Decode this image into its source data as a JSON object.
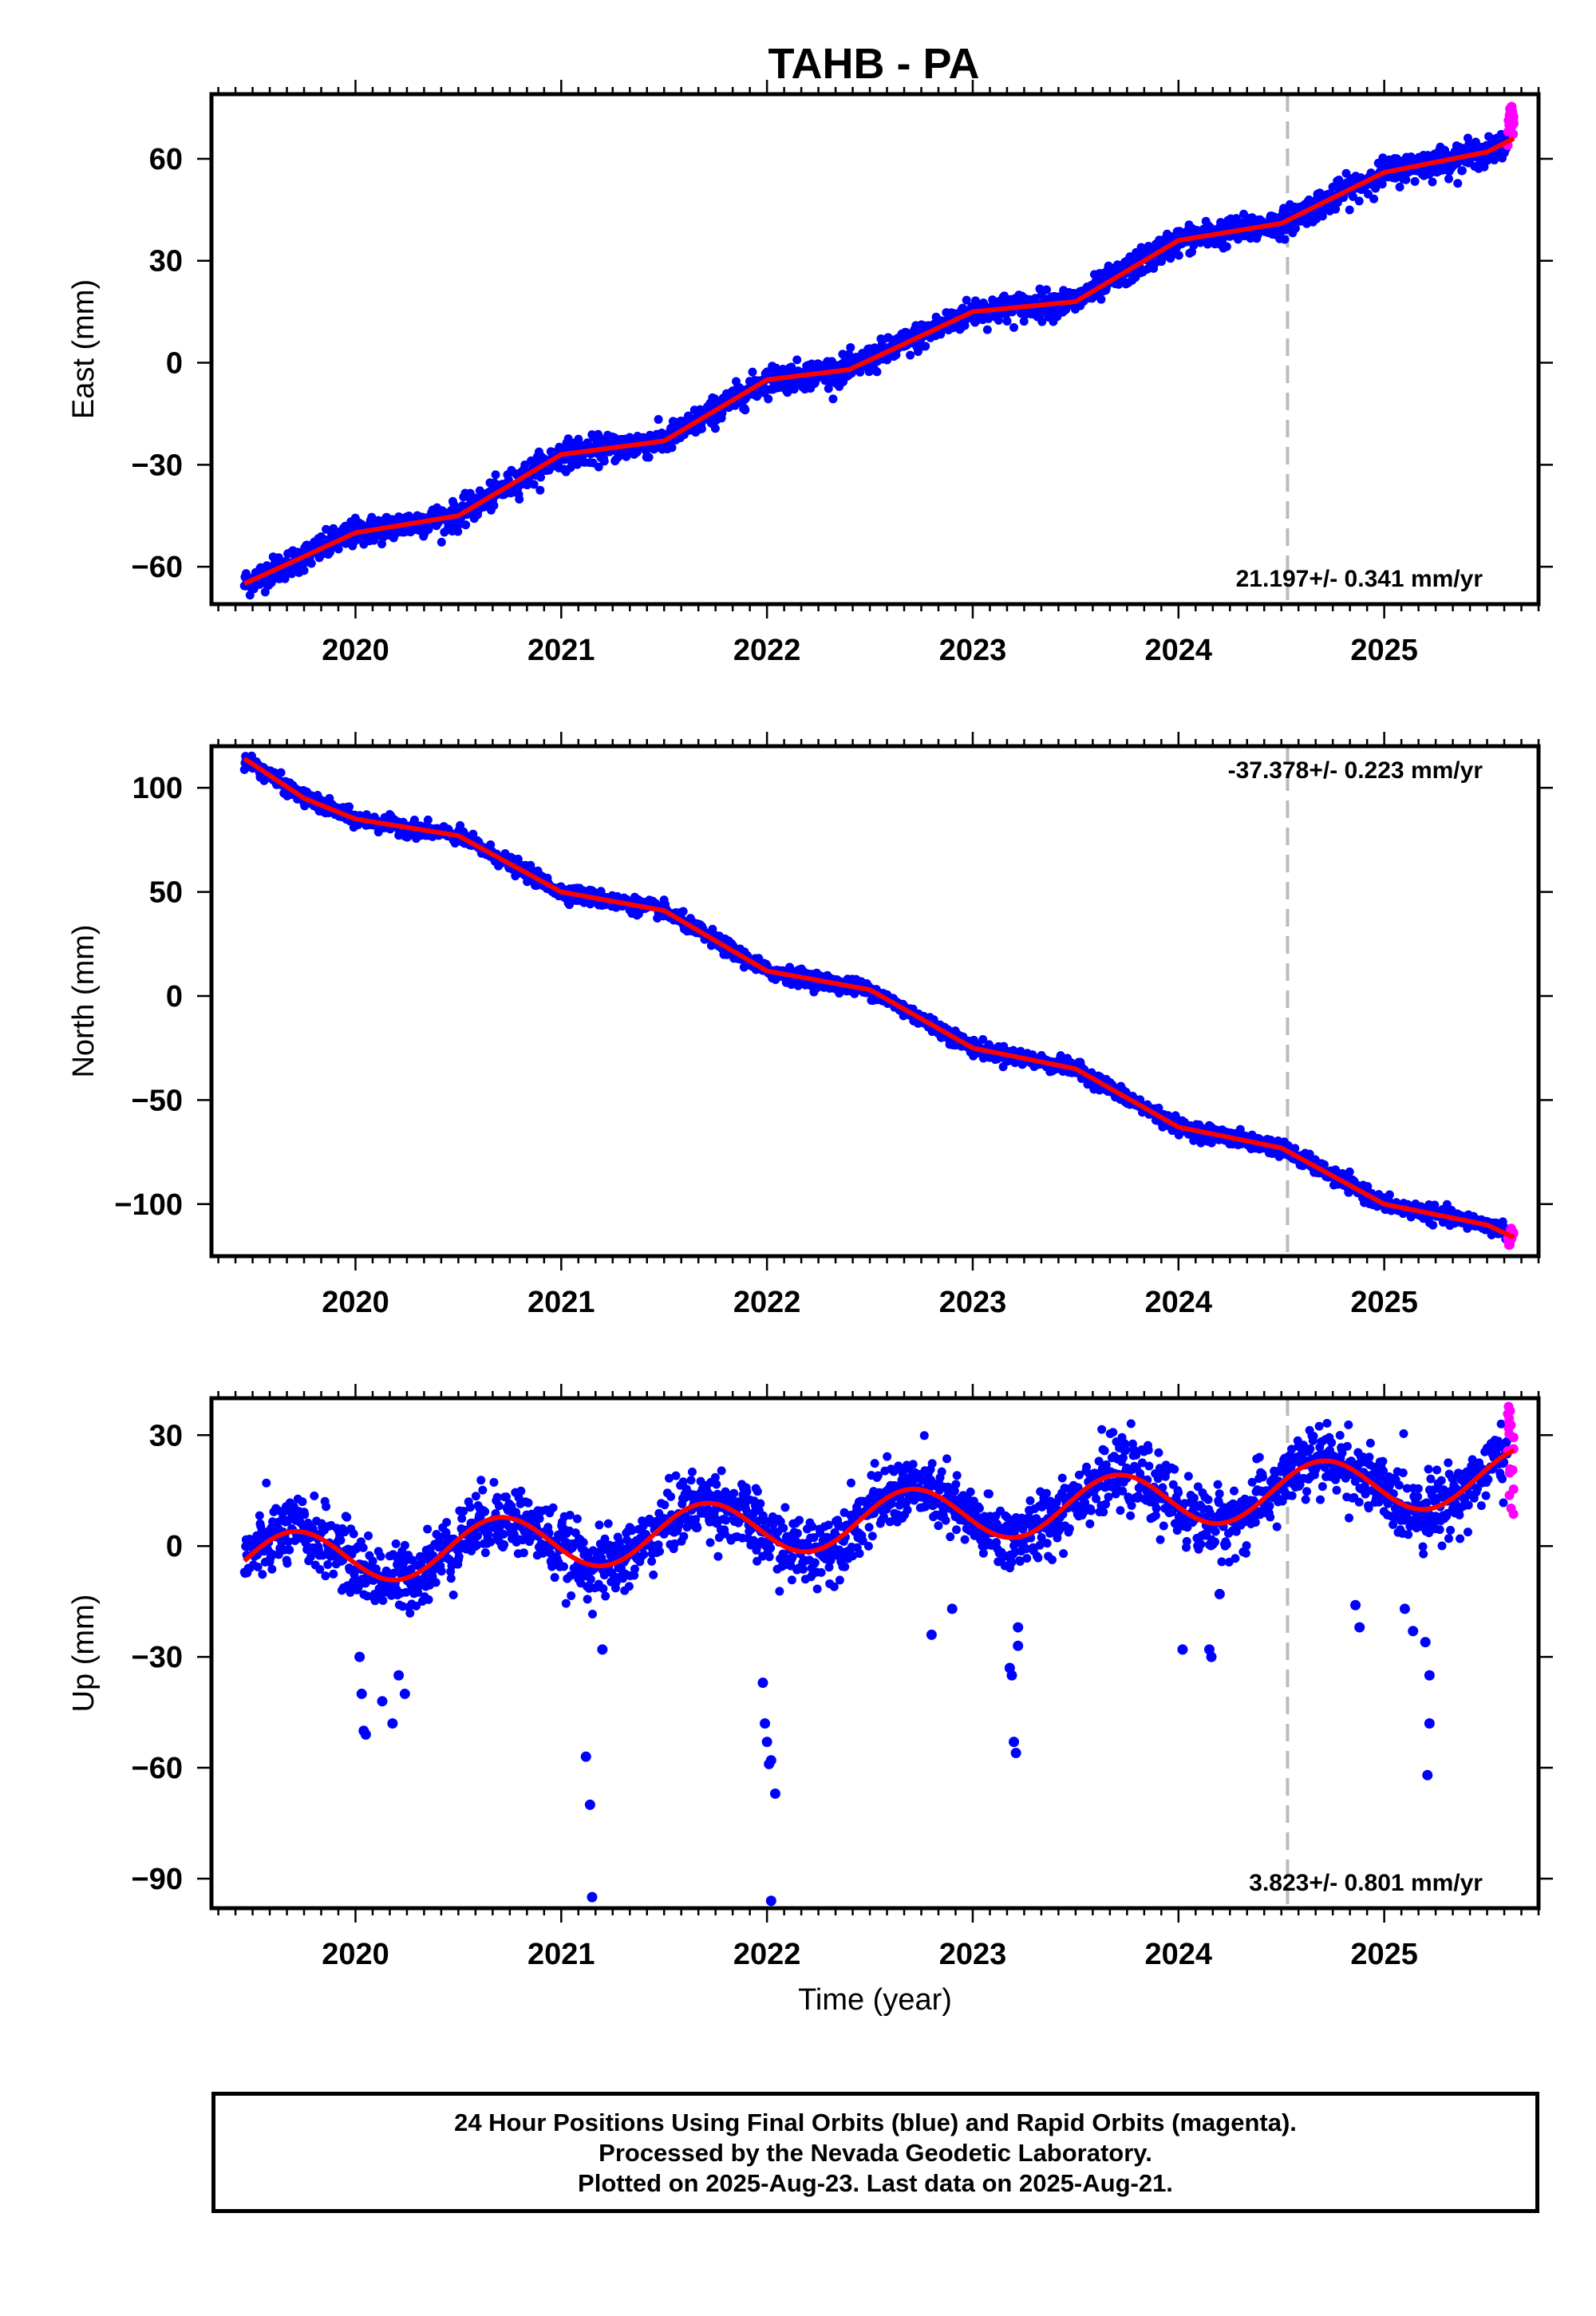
{
  "title": "TAHB - PA",
  "colors": {
    "final": "#0000ff",
    "rapid": "#ff00ff",
    "model": "#ff0000",
    "reference_line": "#bbbbbb"
  },
  "footer": {
    "line1": "24 Hour Positions Using Final Orbits (blue) and Rapid Orbits (magenta).",
    "line2": "Processed by the Nevada Geodetic Laboratory.",
    "line3": "Plotted on 2025-Aug-23. Last data on 2025-Aug-21."
  },
  "chart_data": [
    {
      "type": "scatter",
      "component": "east",
      "ylabel": "East (mm)",
      "xlabel": "",
      "rate_label": "21.197+/- 0.341 mm/yr",
      "rate_position": "bottom-right",
      "xlim": [
        2019.3,
        2025.75
      ],
      "ylim": [
        -71,
        79
      ],
      "xticks": [
        "2020",
        "2021",
        "2022",
        "2023",
        "2024",
        "2025"
      ],
      "yticks": [
        60,
        30,
        0,
        -30,
        -60
      ],
      "ytick_labels": [
        "60",
        "30",
        "0",
        "−30",
        "−60"
      ],
      "reference_line_x": 2024.53,
      "data_start": 2019.46,
      "data_end": 2025.63,
      "series": [
        {
          "name": "Final Orbits",
          "color": "#0000ff",
          "trend_points": [
            [
              2019.46,
              -65
            ],
            [
              2019.75,
              -57
            ],
            [
              2020.0,
              -50
            ],
            [
              2020.5,
              -45
            ],
            [
              2021.0,
              -27
            ],
            [
              2021.5,
              -23
            ],
            [
              2022.0,
              -5
            ],
            [
              2022.4,
              -2
            ],
            [
              2023.0,
              15
            ],
            [
              2023.5,
              18
            ],
            [
              2024.0,
              36
            ],
            [
              2024.5,
              41
            ],
            [
              2025.0,
              56
            ],
            [
              2025.5,
              62
            ],
            [
              2025.6,
              64
            ]
          ],
          "noise_mm": 2.0
        },
        {
          "name": "Rapid Orbits",
          "color": "#ff00ff",
          "range_x": [
            2025.6,
            2025.63
          ],
          "range_y": [
            63,
            76
          ]
        },
        {
          "name": "Model",
          "color": "#ff0000",
          "line_points": [
            [
              2019.46,
              -65
            ],
            [
              2019.75,
              -57
            ],
            [
              2020.0,
              -50
            ],
            [
              2020.5,
              -45
            ],
            [
              2021.0,
              -27
            ],
            [
              2021.5,
              -23
            ],
            [
              2022.0,
              -5
            ],
            [
              2022.4,
              -2
            ],
            [
              2023.0,
              15
            ],
            [
              2023.5,
              18
            ],
            [
              2024.0,
              36
            ],
            [
              2024.5,
              41
            ],
            [
              2025.0,
              56
            ],
            [
              2025.5,
              62
            ],
            [
              2025.63,
              66
            ]
          ]
        }
      ]
    },
    {
      "type": "scatter",
      "component": "north",
      "ylabel": "North (mm)",
      "xlabel": "",
      "rate_label": "-37.378+/- 0.223 mm/yr",
      "rate_position": "top-right",
      "xlim": [
        2019.3,
        2025.75
      ],
      "ylim": [
        -125,
        120
      ],
      "xticks": [
        "2020",
        "2021",
        "2022",
        "2023",
        "2024",
        "2025"
      ],
      "yticks": [
        100,
        50,
        0,
        -50,
        -100
      ],
      "ytick_labels": [
        "100",
        "50",
        "0",
        "−50",
        "−100"
      ],
      "reference_line_x": 2024.53,
      "data_start": 2019.46,
      "data_end": 2025.63,
      "series": [
        {
          "name": "Final Orbits",
          "color": "#0000ff",
          "trend_points": [
            [
              2019.46,
              114
            ],
            [
              2019.75,
              95
            ],
            [
              2020.0,
              85
            ],
            [
              2020.5,
              77
            ],
            [
              2021.0,
              50
            ],
            [
              2021.5,
              41
            ],
            [
              2022.0,
              12
            ],
            [
              2022.5,
              3
            ],
            [
              2023.0,
              -25
            ],
            [
              2023.5,
              -35
            ],
            [
              2024.0,
              -63
            ],
            [
              2024.5,
              -73
            ],
            [
              2025.0,
              -100
            ],
            [
              2025.5,
              -110
            ],
            [
              2025.6,
              -113
            ]
          ],
          "noise_mm": 1.8
        },
        {
          "name": "Rapid Orbits",
          "color": "#ff00ff",
          "range_x": [
            2025.6,
            2025.63
          ],
          "range_y": [
            -120,
            -111
          ]
        },
        {
          "name": "Model",
          "color": "#ff0000",
          "line_points": [
            [
              2019.46,
              114
            ],
            [
              2019.75,
              95
            ],
            [
              2020.0,
              85
            ],
            [
              2020.5,
              77
            ],
            [
              2021.0,
              50
            ],
            [
              2021.5,
              41
            ],
            [
              2022.0,
              12
            ],
            [
              2022.5,
              3
            ],
            [
              2023.0,
              -25
            ],
            [
              2023.5,
              -35
            ],
            [
              2024.0,
              -63
            ],
            [
              2024.5,
              -73
            ],
            [
              2025.0,
              -100
            ],
            [
              2025.5,
              -110
            ],
            [
              2025.63,
              -116
            ]
          ]
        }
      ]
    },
    {
      "type": "scatter",
      "component": "up",
      "ylabel": "Up (mm)",
      "xlabel": "Time (year)",
      "rate_label": "3.823+/- 0.801 mm/yr",
      "rate_position": "bottom-right",
      "xlim": [
        2019.3,
        2025.75
      ],
      "ylim": [
        -98,
        40
      ],
      "xticks": [
        "2020",
        "2021",
        "2022",
        "2023",
        "2024",
        "2025"
      ],
      "yticks": [
        30,
        0,
        -30,
        -60,
        -90
      ],
      "ytick_labels": [
        "30",
        "0",
        "−30",
        "−60",
        "−90"
      ],
      "reference_line_x": 2024.53,
      "data_start": 2019.46,
      "data_end": 2025.63,
      "model": {
        "mean_at_start": -4.5,
        "rate": 3.823,
        "amplitude": 7.5,
        "peak_phase": 0.7
      },
      "series": [
        {
          "name": "Final Orbits",
          "color": "#0000ff",
          "noise_mm": 4.5,
          "outliers": [
            [
              2020.02,
              -30
            ],
            [
              2020.03,
              -40
            ],
            [
              2020.04,
              -50
            ],
            [
              2020.05,
              -51
            ],
            [
              2020.13,
              -42
            ],
            [
              2020.18,
              -48
            ],
            [
              2020.21,
              -35
            ],
            [
              2020.24,
              -40
            ],
            [
              2021.12,
              -57
            ],
            [
              2021.14,
              -70
            ],
            [
              2021.15,
              -95
            ],
            [
              2021.2,
              -28
            ],
            [
              2021.98,
              -37
            ],
            [
              2021.99,
              -48
            ],
            [
              2022.0,
              -53
            ],
            [
              2022.01,
              -59
            ],
            [
              2022.02,
              -58
            ],
            [
              2022.04,
              -67
            ],
            [
              2022.02,
              -96
            ],
            [
              2022.8,
              -24
            ],
            [
              2022.9,
              -17
            ],
            [
              2023.18,
              -33
            ],
            [
              2023.19,
              -35
            ],
            [
              2023.2,
              -53
            ],
            [
              2023.21,
              -56
            ],
            [
              2023.22,
              -22
            ],
            [
              2023.22,
              -27
            ],
            [
              2024.02,
              -28
            ],
            [
              2024.15,
              -28
            ],
            [
              2024.16,
              -30
            ],
            [
              2024.2,
              -13
            ],
            [
              2024.86,
              -16
            ],
            [
              2024.88,
              -22
            ],
            [
              2025.1,
              -17
            ],
            [
              2025.14,
              -23
            ],
            [
              2025.2,
              -26
            ],
            [
              2025.22,
              -35
            ],
            [
              2025.22,
              -48
            ],
            [
              2025.21,
              -62
            ],
            [
              2023.74,
              26
            ]
          ]
        },
        {
          "name": "Rapid Orbits",
          "color": "#ff00ff",
          "range_x": [
            2025.6,
            2025.63
          ],
          "range_y": [
            6,
            38
          ]
        },
        {
          "name": "Model",
          "color": "#ff0000"
        }
      ]
    }
  ]
}
